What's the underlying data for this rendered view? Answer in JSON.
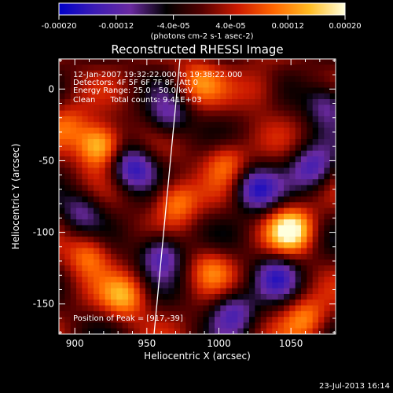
{
  "colorbar": {
    "ticks": [
      "-0.00020",
      "-0.00012",
      "-4.0e-05",
      "4.0e-05",
      "0.00012",
      "0.00020"
    ],
    "unit_label": "(photons cm-2 s-1 asec-2)",
    "colormap": [
      "#0000c8",
      "#3c1cb4",
      "#6a2aa0",
      "#000000",
      "#550000",
      "#cc1a00",
      "#ff6600",
      "#ffbb22",
      "#ffffdd"
    ]
  },
  "chart_data": {
    "type": "heatmap",
    "title": "Reconstructed RHESSI Image",
    "xlabel": "Heliocentric X (arcsec)",
    "ylabel": "Heliocentric Y (arcsec)",
    "xlim": [
      889,
      1081
    ],
    "ylim": [
      -171,
      21
    ],
    "xticks": [
      900,
      950,
      1000,
      1050
    ],
    "yticks": [
      0,
      -50,
      -100,
      -150
    ],
    "value_range": [
      -0.0002,
      0.0002
    ],
    "sources": [
      {
        "x": 917,
        "y": -39,
        "value": 0.0002
      },
      {
        "x": 1050,
        "y": -98,
        "value": 0.00019
      },
      {
        "x": 970,
        "y": -78,
        "value": 0.00013
      },
      {
        "x": 910,
        "y": -115,
        "value": 0.00012
      },
      {
        "x": 985,
        "y": 5,
        "value": 0.0001
      },
      {
        "x": 935,
        "y": -145,
        "value": 0.00013
      },
      {
        "x": 1005,
        "y": -50,
        "value": 0.0001
      },
      {
        "x": 1060,
        "y": -160,
        "value": 0.00011
      },
      {
        "x": 895,
        "y": -25,
        "value": 8e-05
      },
      {
        "x": 995,
        "y": -125,
        "value": 9e-05
      },
      {
        "x": 1030,
        "y": 0,
        "value": 7e-05
      },
      {
        "x": 960,
        "y": -115,
        "value": -0.00015
      },
      {
        "x": 940,
        "y": -55,
        "value": -0.00016
      },
      {
        "x": 1025,
        "y": -70,
        "value": -0.00015
      },
      {
        "x": 1065,
        "y": -55,
        "value": -0.00014
      },
      {
        "x": 1010,
        "y": -155,
        "value": -0.00013
      },
      {
        "x": 1040,
        "y": -130,
        "value": -0.00012
      },
      {
        "x": 965,
        "y": -20,
        "value": -0.00011
      },
      {
        "x": 905,
        "y": -85,
        "value": -0.0001
      },
      {
        "x": 1075,
        "y": -10,
        "value": -0.00012
      }
    ],
    "limb_line": [
      [
        973,
        21
      ],
      [
        955,
        -171
      ]
    ],
    "info_lines": [
      "12-Jan-2007 19:32:22.000 to 19:38:22.000",
      "Detectors: 4F 5F 6F 7F 8F, Att 0",
      "Energy Range: 25.0 - 50.0 keV",
      "Clean      Total counts: 9.41E+03"
    ],
    "peak_label": "Position of Peak = [917,-39]"
  },
  "timestamp": "23-Jul-2013 16:14"
}
